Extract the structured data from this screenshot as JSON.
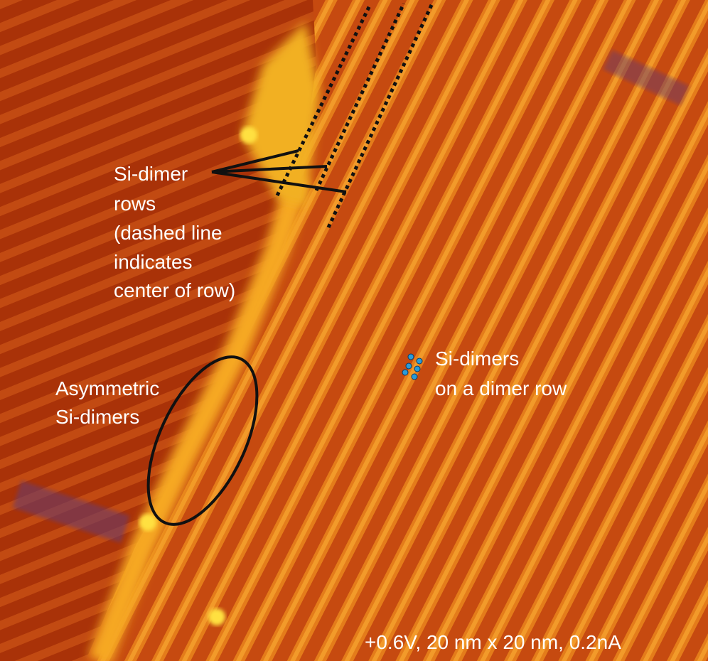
{
  "annotations": [
    {
      "lines": [
        "Si-dimer",
        "rows",
        "(dashed line",
        "indicates",
        "center of row)"
      ]
    },
    {
      "lines": [
        "Asymmetric",
        "Si-dimers"
      ]
    },
    {
      "lines": [
        "Si-dimers",
        "on a dimer row"
      ]
    }
  ],
  "caption": "+0.6V, 20 nm x 20 nm, 0.2nA"
}
